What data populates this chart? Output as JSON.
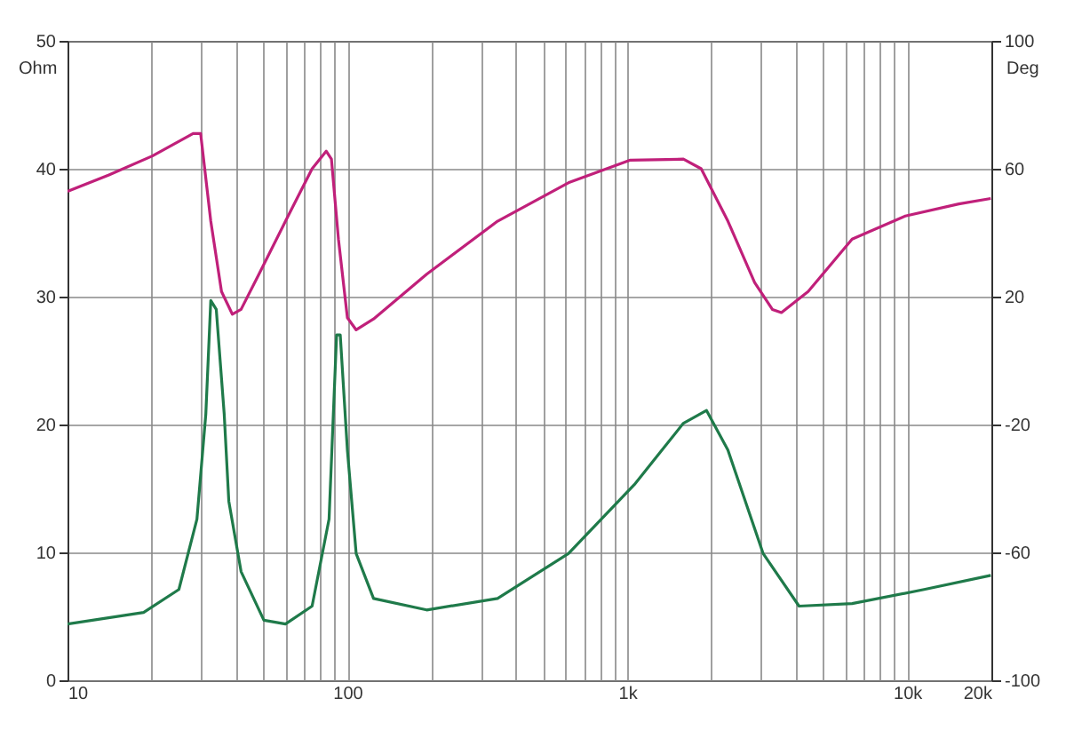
{
  "chart_data": {
    "type": "line",
    "ylabel": "Ohm",
    "y2label": "Deg",
    "log": "x",
    "grid": true,
    "xlim": [
      10,
      20000
    ],
    "xticks": [
      10,
      {
        "value": 20,
        "label": null
      },
      {
        "value": 30,
        "label": null
      },
      {
        "value": 40,
        "label": null
      },
      {
        "value": 50,
        "label": null
      },
      {
        "value": 60,
        "label": null
      },
      {
        "value": 70,
        "label": null
      },
      {
        "value": 80,
        "label": null
      },
      {
        "value": 90,
        "label": null
      },
      100,
      {
        "value": 200,
        "label": null
      },
      {
        "value": 300,
        "label": null
      },
      {
        "value": 400,
        "label": null
      },
      {
        "value": 500,
        "label": null
      },
      {
        "value": 600,
        "label": null
      },
      {
        "value": 700,
        "label": null
      },
      {
        "value": 800,
        "label": null
      },
      {
        "value": 900,
        "label": null
      },
      {
        "value": 1000,
        "label": "1k"
      },
      {
        "value": 2000,
        "label": null
      },
      {
        "value": 3000,
        "label": null
      },
      {
        "value": 4000,
        "label": null
      },
      {
        "value": 5000,
        "label": null
      },
      {
        "value": 6000,
        "label": null
      },
      {
        "value": 7000,
        "label": null
      },
      {
        "value": 8000,
        "label": null
      },
      {
        "value": 9000,
        "label": null
      },
      {
        "value": 10000,
        "label": "10k"
      },
      {
        "value": 20000,
        "label": "20k"
      }
    ],
    "ylim": [
      0,
      50
    ],
    "yticks": [
      0,
      10,
      20,
      30,
      40,
      50
    ],
    "y2lim": [
      -100,
      100
    ],
    "y2ticks": [
      -100,
      -60,
      -20,
      20,
      60,
      100
    ],
    "series": [
      {
        "color": "#c0207a",
        "axis": "y2",
        "x": [
          10,
          14,
          20.1,
          28.1,
          29.9,
          32.5,
          35.5,
          38.8,
          41.7,
          48.3,
          60.1,
          74.8,
          84,
          87.7,
          92.9,
          100,
          107.5,
          124,
          192,
          344,
          616,
          1025,
          1587,
          1837,
          2289,
          2852,
          3300,
          3555,
          4430,
          6360,
          9850,
          15300,
          19900
        ],
        "values": [
          52.9,
          58,
          64,
          71,
          71,
          43.6,
          21.6,
          14.5,
          16,
          27,
          43.6,
          60,
          65.5,
          63,
          38,
          13.4,
          9.6,
          13,
          27,
          43.6,
          55.6,
          62.7,
          63,
          60,
          43.6,
          24.4,
          16,
          15,
          21.6,
          38,
          45.2,
          49,
          50.7
        ]
      },
      {
        "color": "#1f7a4a",
        "x": [
          10,
          18.7,
          25,
          29,
          31.2,
          32.5,
          34,
          36.3,
          37.7,
          41.7,
          50.3,
          60.1,
          74.8,
          86,
          91.5,
          94.3,
          100,
          107.5,
          124,
          192,
          344,
          616,
          1060,
          1587,
          1920,
          2289,
          3060,
          4110,
          6360,
          11500,
          19900
        ],
        "values": [
          4.4,
          5.3,
          7.1,
          12.6,
          20.8,
          29.7,
          29,
          20.8,
          14,
          8.5,
          4.7,
          4.4,
          5.8,
          12.6,
          27,
          27,
          18,
          9.9,
          6.4,
          5.5,
          6.4,
          9.9,
          15.3,
          20.1,
          21.1,
          18,
          9.9,
          5.8,
          6,
          7.1,
          8.2
        ]
      }
    ]
  }
}
